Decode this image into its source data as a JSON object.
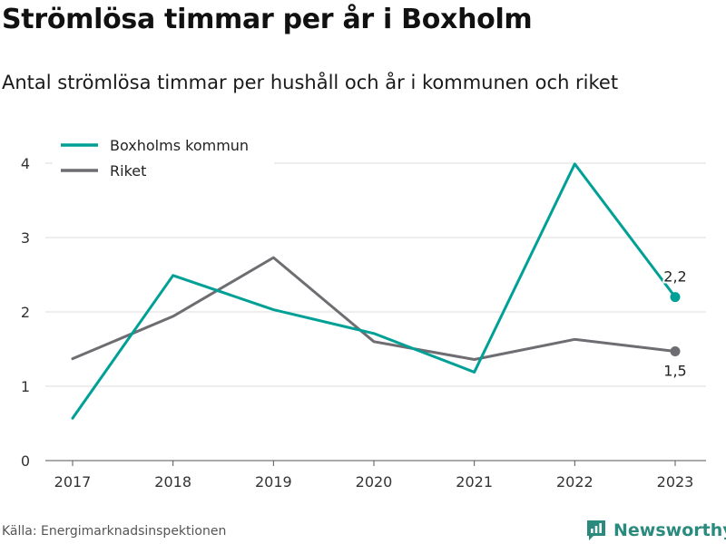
{
  "header": {
    "title": "Strömlösa timmar per år i Boxholm",
    "subtitle": "Antal strömlösa timmar per hushåll och år i kommunen och riket"
  },
  "footer": {
    "source": "Källa: Energimarknadsinspektionen",
    "brand": "Newsworthy"
  },
  "chart_data": {
    "type": "line",
    "categories": [
      "2017",
      "2018",
      "2019",
      "2020",
      "2021",
      "2022",
      "2023"
    ],
    "ylim": [
      0,
      4
    ],
    "yticks": [
      "0",
      "1",
      "2",
      "3",
      "4"
    ],
    "grid": true,
    "legend_position": "top-left",
    "series": [
      {
        "name": "Boxholms kommun",
        "color": "#00a096",
        "values": [
          0.57,
          2.49,
          2.03,
          1.71,
          1.19,
          3.99,
          2.2
        ],
        "end_label": "2,2"
      },
      {
        "name": "Riket",
        "color": "#6d6d72",
        "values": [
          1.37,
          1.94,
          2.73,
          1.6,
          1.36,
          1.63,
          1.47
        ],
        "end_label": "1,5"
      }
    ]
  }
}
